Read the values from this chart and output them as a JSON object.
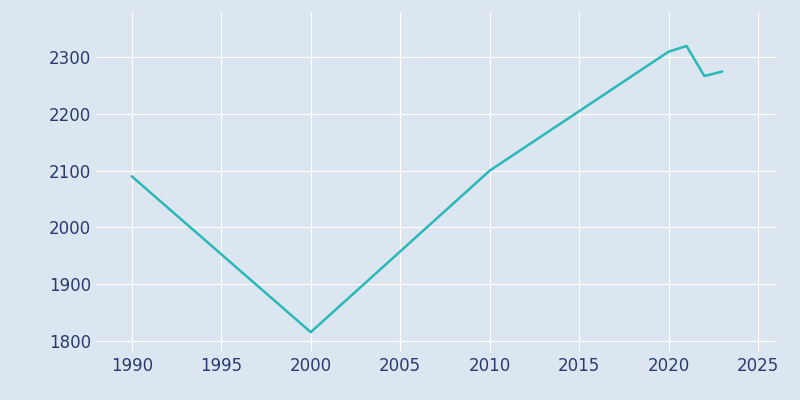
{
  "years": [
    1990,
    2000,
    2010,
    2020,
    2021,
    2022,
    2023
  ],
  "population": [
    2090,
    1815,
    2100,
    2310,
    2320,
    2267,
    2275
  ],
  "line_color": "#2ab8b8",
  "background_color": "#dce6f0",
  "xlim": [
    1988,
    2026
  ],
  "ylim": [
    1780,
    2380
  ],
  "xticks": [
    1990,
    1995,
    2000,
    2005,
    2010,
    2015,
    2020,
    2025
  ],
  "yticks": [
    1800,
    1900,
    2000,
    2100,
    2200,
    2300
  ],
  "tick_label_color": "#2b3a6e",
  "grid_color": "#ffffff",
  "linewidth": 1.8,
  "tick_fontsize": 12
}
